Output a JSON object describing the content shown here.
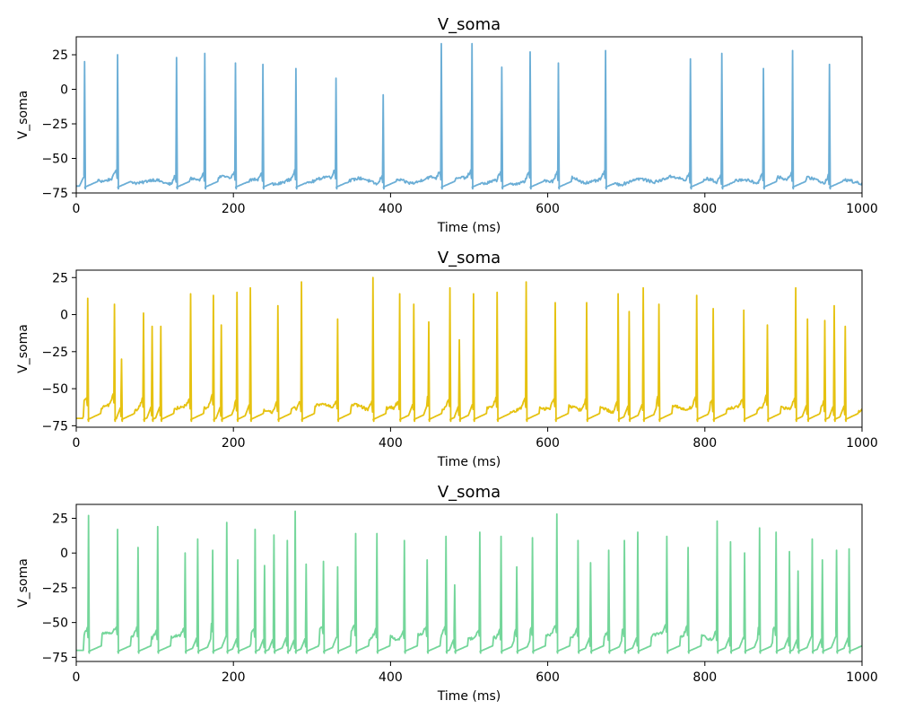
{
  "chart_data": [
    {
      "type": "line",
      "title": "V_soma",
      "xlabel": "Time (ms)",
      "ylabel": "V_soma",
      "xlim": [
        0,
        1000
      ],
      "ylim": [
        -75,
        38
      ],
      "xticks": [
        0,
        200,
        400,
        600,
        800,
        1000
      ],
      "yticks": [
        25,
        0,
        -25,
        -50,
        -75
      ],
      "grid": false,
      "color": "#6baed6",
      "series": [
        {
          "rest": -70,
          "baseline": -66,
          "spikes": [
            {
              "t": 10,
              "peak": 20
            },
            {
              "t": 52,
              "peak": 25
            },
            {
              "t": 127,
              "peak": 23
            },
            {
              "t": 163,
              "peak": 26
            },
            {
              "t": 202,
              "peak": 19
            },
            {
              "t": 237,
              "peak": 18
            },
            {
              "t": 279,
              "peak": 15
            },
            {
              "t": 330,
              "peak": 8
            },
            {
              "t": 390,
              "peak": -4
            },
            {
              "t": 464,
              "peak": 33
            },
            {
              "t": 503,
              "peak": 33
            },
            {
              "t": 541,
              "peak": 16
            },
            {
              "t": 577,
              "peak": 27
            },
            {
              "t": 613,
              "peak": 19
            },
            {
              "t": 673,
              "peak": 28
            },
            {
              "t": 781,
              "peak": 22
            },
            {
              "t": 821,
              "peak": 26
            },
            {
              "t": 874,
              "peak": 15
            },
            {
              "t": 911,
              "peak": 28
            },
            {
              "t": 958,
              "peak": 18
            }
          ]
        }
      ]
    },
    {
      "type": "line",
      "title": "V_soma",
      "xlabel": "Time (ms)",
      "ylabel": "V_soma",
      "xlim": [
        0,
        1000
      ],
      "ylim": [
        -76,
        30
      ],
      "xticks": [
        0,
        200,
        400,
        600,
        800,
        1000
      ],
      "yticks": [
        25,
        0,
        -25,
        -50,
        -75
      ],
      "grid": false,
      "color": "#e6c210",
      "series": [
        {
          "rest": -70,
          "baseline": -63,
          "spikes": [
            {
              "t": 14,
              "peak": 11
            },
            {
              "t": 48,
              "peak": 7
            },
            {
              "t": 57,
              "peak": -30
            },
            {
              "t": 85,
              "peak": 1
            },
            {
              "t": 96,
              "peak": -8
            },
            {
              "t": 107,
              "peak": -8
            },
            {
              "t": 145,
              "peak": 14
            },
            {
              "t": 174,
              "peak": 13
            },
            {
              "t": 184,
              "peak": -7
            },
            {
              "t": 204,
              "peak": 15
            },
            {
              "t": 221,
              "peak": 18
            },
            {
              "t": 256,
              "peak": 6
            },
            {
              "t": 286,
              "peak": 22
            },
            {
              "t": 332,
              "peak": -3
            },
            {
              "t": 377,
              "peak": 25
            },
            {
              "t": 411,
              "peak": 14
            },
            {
              "t": 429,
              "peak": 7
            },
            {
              "t": 448,
              "peak": -5
            },
            {
              "t": 475,
              "peak": 18
            },
            {
              "t": 487,
              "peak": -17
            },
            {
              "t": 505,
              "peak": 14
            },
            {
              "t": 535,
              "peak": 15
            },
            {
              "t": 572,
              "peak": 22
            },
            {
              "t": 609,
              "peak": 8
            },
            {
              "t": 649,
              "peak": 8
            },
            {
              "t": 689,
              "peak": 14
            },
            {
              "t": 703,
              "peak": 2
            },
            {
              "t": 721,
              "peak": 18
            },
            {
              "t": 741,
              "peak": 7
            },
            {
              "t": 789,
              "peak": 13
            },
            {
              "t": 810,
              "peak": 4
            },
            {
              "t": 849,
              "peak": 3
            },
            {
              "t": 879,
              "peak": -7
            },
            {
              "t": 915,
              "peak": 18
            },
            {
              "t": 930,
              "peak": -3
            },
            {
              "t": 952,
              "peak": -4
            },
            {
              "t": 964,
              "peak": 6
            },
            {
              "t": 978,
              "peak": -8
            }
          ]
        }
      ]
    },
    {
      "type": "line",
      "title": "V_soma",
      "xlabel": "Time (ms)",
      "ylabel": "V_soma",
      "xlim": [
        0,
        1000
      ],
      "ylim": [
        -78,
        35
      ],
      "xticks": [
        0,
        200,
        400,
        600,
        800,
        1000
      ],
      "yticks": [
        25,
        0,
        -25,
        -50,
        -75
      ],
      "grid": false,
      "color": "#74d69a",
      "series": [
        {
          "rest": -70,
          "baseline": -60,
          "spikes": [
            {
              "t": 15,
              "peak": 27
            },
            {
              "t": 52,
              "peak": 17
            },
            {
              "t": 78,
              "peak": 4
            },
            {
              "t": 103,
              "peak": 19
            },
            {
              "t": 138,
              "peak": 0
            },
            {
              "t": 154,
              "peak": 10
            },
            {
              "t": 173,
              "peak": 2
            },
            {
              "t": 191,
              "peak": 22
            },
            {
              "t": 205,
              "peak": -5
            },
            {
              "t": 227,
              "peak": 17
            },
            {
              "t": 239,
              "peak": -9
            },
            {
              "t": 251,
              "peak": 13
            },
            {
              "t": 268,
              "peak": 9
            },
            {
              "t": 278,
              "peak": 30
            },
            {
              "t": 292,
              "peak": -8
            },
            {
              "t": 314,
              "peak": -6
            },
            {
              "t": 332,
              "peak": -10
            },
            {
              "t": 355,
              "peak": 14
            },
            {
              "t": 382,
              "peak": 14
            },
            {
              "t": 417,
              "peak": 9
            },
            {
              "t": 446,
              "peak": -5
            },
            {
              "t": 470,
              "peak": 12
            },
            {
              "t": 481,
              "peak": -23
            },
            {
              "t": 513,
              "peak": 15
            },
            {
              "t": 540,
              "peak": 12
            },
            {
              "t": 560,
              "peak": -10
            },
            {
              "t": 580,
              "peak": 11
            },
            {
              "t": 611,
              "peak": 28
            },
            {
              "t": 638,
              "peak": 9
            },
            {
              "t": 654,
              "peak": -7
            },
            {
              "t": 677,
              "peak": 2
            },
            {
              "t": 697,
              "peak": 9
            },
            {
              "t": 714,
              "peak": 15
            },
            {
              "t": 751,
              "peak": 12
            },
            {
              "t": 778,
              "peak": 4
            },
            {
              "t": 815,
              "peak": 23
            },
            {
              "t": 832,
              "peak": 8
            },
            {
              "t": 850,
              "peak": 0
            },
            {
              "t": 869,
              "peak": 18
            },
            {
              "t": 890,
              "peak": 15
            },
            {
              "t": 907,
              "peak": 1
            },
            {
              "t": 918,
              "peak": -13
            },
            {
              "t": 936,
              "peak": 10
            },
            {
              "t": 949,
              "peak": -5
            },
            {
              "t": 967,
              "peak": 2
            },
            {
              "t": 983,
              "peak": 3
            }
          ]
        }
      ]
    }
  ]
}
